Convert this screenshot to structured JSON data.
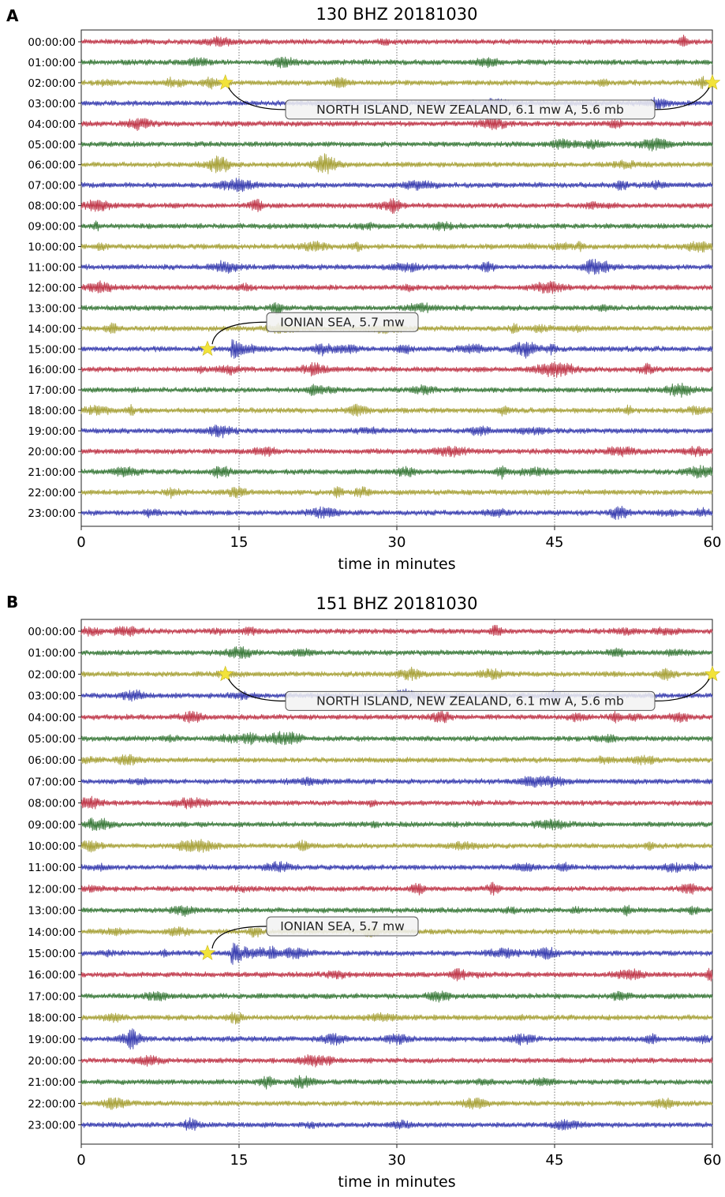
{
  "chart_data": [
    {
      "type": "line",
      "panel_label": "A",
      "title": "130 BHZ 20181030",
      "xlabel": "time in minutes",
      "xlim": [
        0,
        60
      ],
      "xticks": [
        0,
        15,
        30,
        45,
        60
      ],
      "row_labels": [
        "00:00:00",
        "01:00:00",
        "02:00:00",
        "03:00:00",
        "04:00:00",
        "05:00:00",
        "06:00:00",
        "07:00:00",
        "08:00:00",
        "09:00:00",
        "10:00:00",
        "11:00:00",
        "12:00:00",
        "13:00:00",
        "14:00:00",
        "15:00:00",
        "16:00:00",
        "17:00:00",
        "18:00:00",
        "19:00:00",
        "20:00:00",
        "21:00:00",
        "22:00:00",
        "23:00:00"
      ],
      "series_colors": [
        "#c0394b",
        "#3b7a3b",
        "#a8a23a",
        "#3a3fb0"
      ],
      "vertical_gridlines": [
        15,
        30,
        45
      ],
      "events": [
        {
          "label": "NORTH ISLAND, NEW ZEALAND, 6.1 mw A, 5.6 mb",
          "row": 2,
          "minutes": [
            13.7,
            60
          ]
        },
        {
          "label": "IONIAN SEA, 5.7 mw",
          "row": 15,
          "minutes": [
            12
          ]
        }
      ]
    },
    {
      "type": "line",
      "panel_label": "B",
      "title": "151 BHZ 20181030",
      "xlabel": "time in minutes",
      "xlim": [
        0,
        60
      ],
      "xticks": [
        0,
        15,
        30,
        45,
        60
      ],
      "row_labels": [
        "00:00:00",
        "01:00:00",
        "02:00:00",
        "03:00:00",
        "04:00:00",
        "05:00:00",
        "06:00:00",
        "07:00:00",
        "08:00:00",
        "09:00:00",
        "10:00:00",
        "11:00:00",
        "12:00:00",
        "13:00:00",
        "14:00:00",
        "15:00:00",
        "16:00:00",
        "17:00:00",
        "18:00:00",
        "19:00:00",
        "20:00:00",
        "21:00:00",
        "22:00:00",
        "23:00:00"
      ],
      "series_colors": [
        "#c0394b",
        "#3b7a3b",
        "#a8a23a",
        "#3a3fb0"
      ],
      "vertical_gridlines": [
        15,
        30,
        45
      ],
      "events": [
        {
          "label": "NORTH ISLAND, NEW ZEALAND, 6.1 mw A, 5.6 mb",
          "row": 2,
          "minutes": [
            13.7,
            60
          ]
        },
        {
          "label": "IONIAN SEA, 5.7 mw",
          "row": 15,
          "minutes": [
            12
          ]
        }
      ]
    }
  ]
}
